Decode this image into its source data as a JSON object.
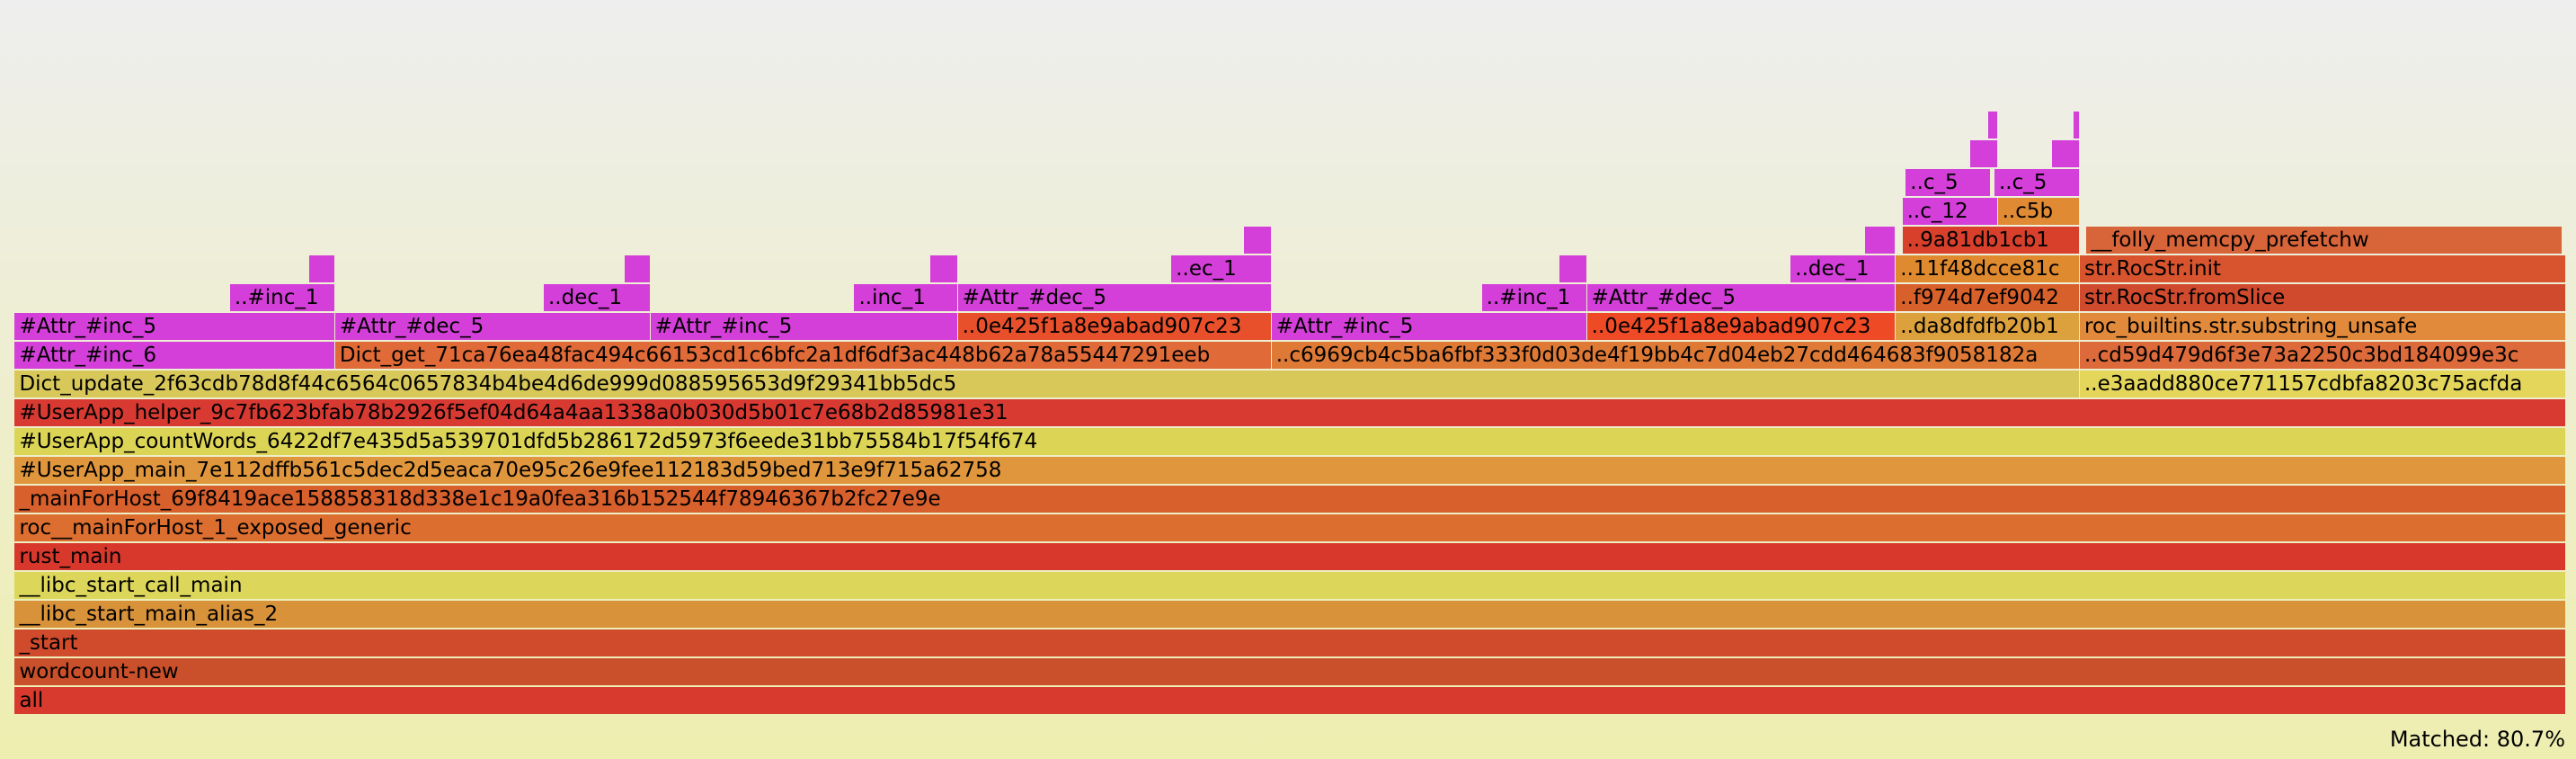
{
  "frames": [
    {
      "label": "all"
    },
    {
      "label": "wordcount-new"
    },
    {
      "label": "_start"
    },
    {
      "label": "__libc_start_main_alias_2"
    },
    {
      "label": "__libc_start_call_main"
    },
    {
      "label": "rust_main"
    },
    {
      "label": "roc__mainForHost_1_exposed_generic"
    },
    {
      "label": "_mainForHost_69f8419ace158858318d338e1c19a0fea316b152544f78946367b2fc27e9e"
    },
    {
      "label": "#UserApp_main_7e112dffb561c5dec2d5eaca70e95c26e9fee112183d59bed713e9f715a62758"
    },
    {
      "label": "#UserApp_countWords_6422df7e435d5a539701dfd5b286172d5973f6eede31bb75584b17f54f674"
    },
    {
      "label": "#UserApp_helper_9c7fb623bfab78b2926f5ef04d64a4aa1338a0b030d5b01c7e68b2d85981e31"
    },
    {
      "label": "Dict_update_2f63cdb78d8f44c6564c0657834b4be4d6de999d088595653d9f29341bb5dc5"
    },
    {
      "label": "..e3aadd880ce771157cdbfa8203c75acfda"
    },
    {
      "label": "#Attr_#inc_6"
    },
    {
      "label": "Dict_get_71ca76ea48fac494c66153cd1c6bfc2a1df6df3ac448b62a78a55447291eeb"
    },
    {
      "label": "..c6969cb4c5ba6fbf333f0d03de4f19bb4c7d04eb27cdd464683f9058182a"
    },
    {
      "label": "..cd59d479d6f3e73a2250c3bd184099e3c"
    },
    {
      "label": "#Attr_#inc_5"
    },
    {
      "label": "#Attr_#dec_5"
    },
    {
      "label": "#Attr_#inc_5"
    },
    {
      "label": "..0e425f1a8e9abad907c23"
    },
    {
      "label": "#Attr_#inc_5"
    },
    {
      "label": "..0e425f1a8e9abad907c23"
    },
    {
      "label": "..da8dfdfb20b1"
    },
    {
      "label": "roc_builtins.str.substring_unsafe"
    },
    {
      "label": "..#inc_1"
    },
    {
      "label": "..dec_1"
    },
    {
      "label": "..inc_1"
    },
    {
      "label": "#Attr_#dec_5"
    },
    {
      "label": "..#inc_1"
    },
    {
      "label": "#Attr_#dec_5"
    },
    {
      "label": "..f974d7ef9042"
    },
    {
      "label": "str.RocStr.fromSlice"
    },
    {
      "label": "..ec_1"
    },
    {
      "label": "..dec_1"
    },
    {
      "label": "..11f48dcce81c"
    },
    {
      "label": "str.RocStr.init"
    },
    {
      "label": "..9a81db1cb1"
    },
    {
      "label": "__folly_memcpy_prefetchw"
    },
    {
      "label": "..c_12"
    },
    {
      "label": "..c5b"
    },
    {
      "label": "..c_5"
    },
    {
      "label": "..c_5"
    }
  ],
  "status": "Matched: 80.7%"
}
